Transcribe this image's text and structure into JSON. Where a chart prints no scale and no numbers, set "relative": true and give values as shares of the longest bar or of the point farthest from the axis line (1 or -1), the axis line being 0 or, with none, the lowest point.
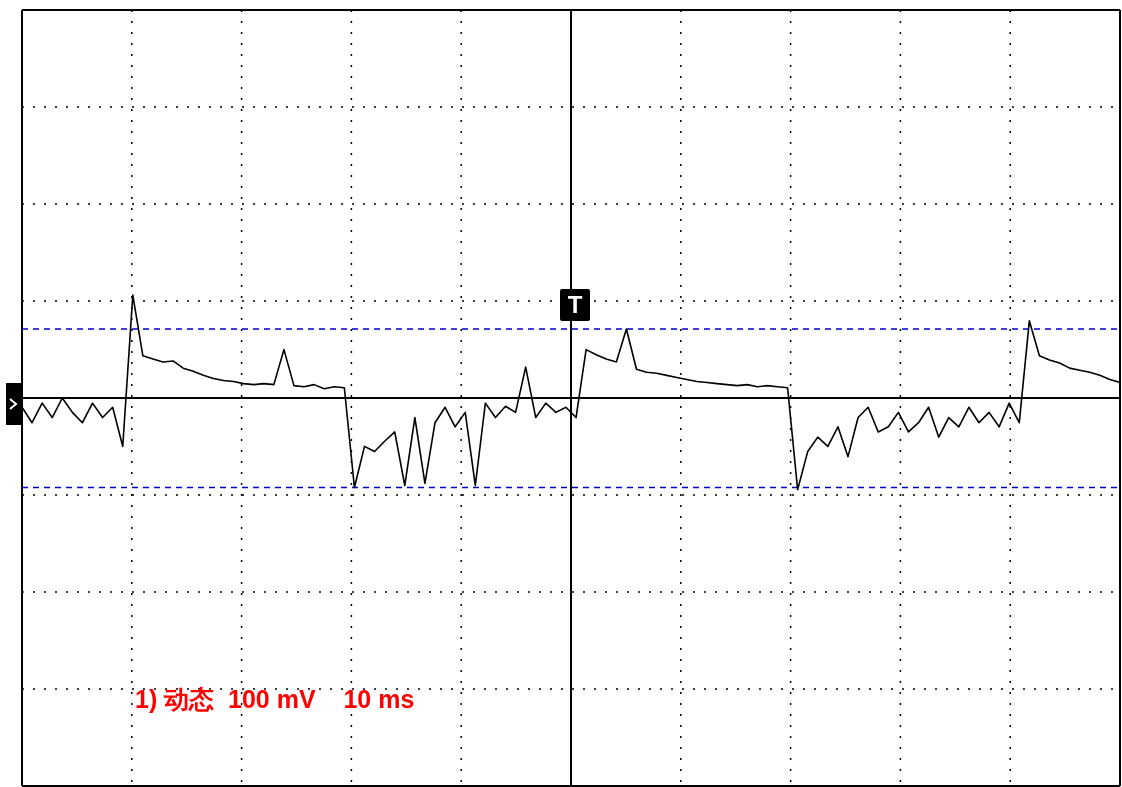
{
  "chart_data": {
    "type": "line",
    "annotations": [
      "1) 动态  100 mV    10 ms",
      "T"
    ],
    "relative": true,
    "categories": [
      null,
      null,
      null,
      null,
      null,
      null,
      null,
      null,
      null,
      null,
      null,
      null,
      null,
      null,
      null,
      null,
      null,
      null,
      null,
      null,
      null,
      null,
      null,
      null,
      null,
      null,
      null,
      null,
      null,
      null,
      null,
      null,
      null,
      null,
      null,
      null,
      null,
      null,
      null,
      null,
      null,
      null,
      null,
      null,
      null,
      null,
      null,
      null,
      null,
      null,
      null,
      null,
      null,
      null,
      null,
      null,
      null,
      null,
      null,
      null,
      null,
      null,
      null,
      null,
      null,
      null,
      null,
      null,
      null,
      null,
      null,
      null,
      null,
      null,
      null,
      null,
      null,
      null,
      null,
      null,
      null,
      null,
      null,
      null,
      null,
      null,
      null,
      null,
      null,
      null,
      null,
      null,
      null,
      null,
      null,
      null,
      null,
      null,
      null,
      null,
      null,
      null,
      null,
      null,
      null,
      null,
      null,
      null,
      null,
      null
    ],
    "series": [
      {
        "color": "#000000",
        "values": [
          -0.09,
          -0.24,
          -0.05,
          -0.19,
          0,
          -0.14,
          -0.24,
          -0.05,
          -0.19,
          -0.09,
          -0.47,
          1,
          0.41,
          0.38,
          0.35,
          0.36,
          0.29,
          0.26,
          0.22,
          0.19,
          0.17,
          0.16,
          0.14,
          0.13,
          0.14,
          0.13,
          0.47,
          0.12,
          0.11,
          0.13,
          0.09,
          0.11,
          0.1,
          -0.87,
          -0.47,
          -0.52,
          -0.42,
          -0.33,
          -0.85,
          -0.19,
          -0.83,
          -0.24,
          -0.09,
          -0.28,
          -0.14,
          -0.85,
          -0.05,
          -0.19,
          -0.08,
          -0.14,
          0.3,
          -0.19,
          -0.05,
          -0.14,
          -0.09,
          -0.19,
          0.47,
          0.42,
          0.38,
          0.35,
          0.67,
          0.28,
          0.25,
          0.24,
          0.22,
          0.2,
          0.18,
          0.16,
          0.15,
          0.14,
          0.13,
          0.12,
          0.13,
          0.11,
          0.12,
          0.11,
          0.1,
          -0.89,
          -0.52,
          -0.38,
          -0.47,
          -0.28,
          -0.57,
          -0.19,
          -0.09,
          -0.33,
          -0.28,
          -0.14,
          -0.33,
          -0.24,
          -0.09,
          -0.38,
          -0.19,
          -0.28,
          -0.09,
          -0.24,
          -0.14,
          -0.28,
          -0.05,
          -0.24,
          0.75,
          0.41,
          0.37,
          0.34,
          0.29,
          0.27,
          0.25,
          0.22,
          0.18,
          0.15
        ]
      }
    ],
    "grid": true,
    "ref_lines": [
      {
        "axis": "y",
        "value": 0.67,
        "color": "#0000cc",
        "line_style": "dashed"
      },
      {
        "axis": "y",
        "value": -0.87,
        "color": "#0000cc",
        "line_style": "dashed"
      }
    ]
  }
}
